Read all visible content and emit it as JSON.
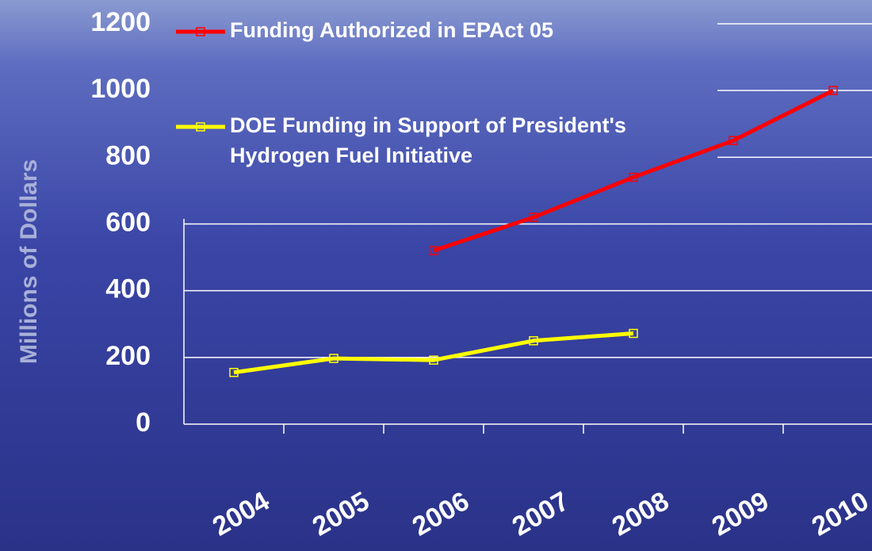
{
  "chart_data": {
    "type": "line",
    "y_label": "Millions of Dollars",
    "categories": [
      "2004",
      "2005",
      "2006",
      "2007",
      "2008",
      "2009",
      "2010"
    ],
    "series": [
      {
        "name": "Funding Authorized in EPAct 05",
        "color": "#ff0000",
        "values": [
          null,
          null,
          520,
          620,
          740,
          850,
          1000
        ]
      },
      {
        "name": "DOE Funding in Support of President's Hydrogen Fuel Initiative",
        "color": "#ffff00",
        "values": [
          155,
          197,
          192,
          250,
          272,
          null,
          null
        ]
      }
    ],
    "ylim": [
      0,
      1200
    ],
    "yticks": [
      0,
      200,
      400,
      600,
      800,
      1000,
      1200
    ],
    "grid": true,
    "legend": "top-left"
  }
}
